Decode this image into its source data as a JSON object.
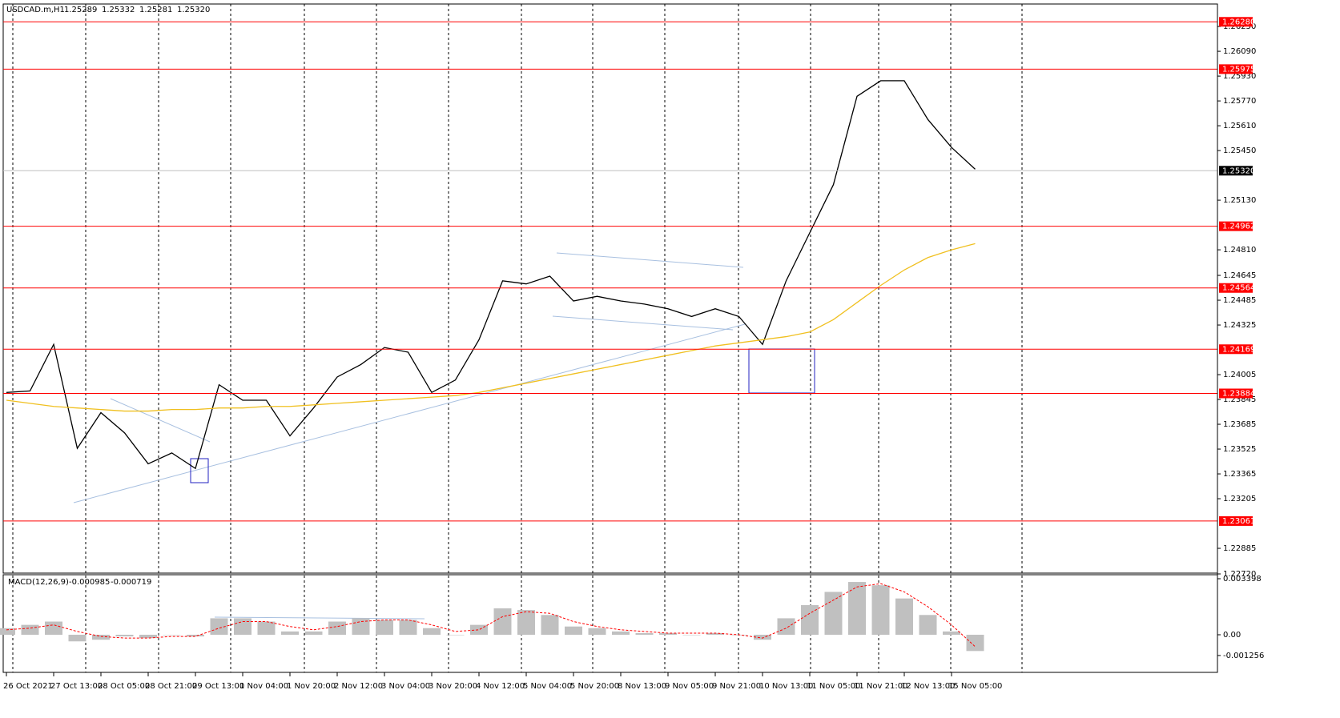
{
  "chart_data": [
    {
      "type": "line",
      "symbol": "USDCAD.m,H1",
      "ohlc": [
        1.25289,
        1.25332,
        1.25281,
        {
          "value": 1.2532,
          "label": "1.25320"
        }
      ],
      "categories": [
        "26 Oct 2021",
        null,
        "27 Oct 13:00",
        null,
        "28 Oct 05:00",
        null,
        "28 Oct 21:00",
        null,
        "29 Oct 13:00",
        null,
        "1 Nov 04:00",
        null,
        "1 Nov 20:00",
        null,
        "2 Nov 12:00",
        null,
        "3 Nov 04:00",
        null,
        "3 Nov 20:00",
        null,
        "4 Nov 12:00",
        null,
        "5 Nov 04:00",
        null,
        "5 Nov 20:00",
        null,
        "8 Nov 13:00",
        null,
        "9 Nov 05:00",
        null,
        "9 Nov 21:00",
        null,
        "10 Nov 13:00",
        null,
        "11 Nov 05:00",
        null,
        "11 Nov 21:00",
        null,
        "12 Nov 13:00",
        null,
        "15 Nov 05:00",
        null
      ],
      "series": [
        {
          "color": "#000000",
          "values": [
            1.2389,
            1.239,
            1.242,
            1.2353,
            1.2376,
            1.2363,
            1.2343,
            1.235,
            1.234,
            1.2394,
            1.2384,
            1.2384,
            1.2361,
            1.2379,
            1.2399,
            1.2407,
            1.2418,
            1.2415,
            1.2389,
            1.2397,
            1.2423,
            1.2461,
            1.2459,
            1.2464,
            1.2448,
            1.2451,
            1.2448,
            1.2446,
            1.2443,
            1.2438,
            1.2443,
            1.2438,
            1.242,
            1.2461,
            1.2492,
            1.2523,
            1.258,
            1.259,
            1.259,
            1.2565,
            1.2547,
            1.2533
          ]
        },
        {
          "color": "#f0c020",
          "values": [
            1.2384,
            1.2382,
            1.238,
            1.2379,
            1.2378,
            1.2377,
            1.2377,
            1.2378,
            1.2378,
            1.2379,
            1.2379,
            1.238,
            1.238,
            1.2381,
            1.2382,
            1.2383,
            1.2384,
            1.2385,
            1.2386,
            1.2387,
            1.2389,
            1.2392,
            1.2395,
            1.2398,
            1.2401,
            1.2404,
            1.2407,
            1.241,
            1.2413,
            1.2416,
            1.2419,
            1.2421,
            1.2423,
            1.2425,
            1.2428,
            1.2436,
            1.2447,
            1.2458,
            1.2468,
            1.2476,
            1.2481,
            1.2485
          ]
        }
      ],
      "ylim": [
        1.2272,
        1.26395
      ],
      "yticks": [
        {
          "value": 1.2625,
          "label": "1.26250"
        },
        {
          "value": 1.2609,
          "label": "1.26090"
        },
        {
          "value": 1.2593,
          "label": "1.25930"
        },
        {
          "value": 1.2577,
          "label": "1.25770"
        },
        {
          "value": 1.2561,
          "label": "1.25610"
        },
        {
          "value": 1.2545,
          "label": "1.25450"
        },
        {
          "value": 1.2513,
          "label": "1.25130"
        },
        {
          "value": 1.2481,
          "label": "1.24810"
        },
        1.24645,
        1.24485,
        1.24325,
        {
          "value": 1.24005,
          "label": "1.24005"
        },
        1.23845,
        1.23685,
        1.23525,
        1.23365,
        {
          "value": 1.23205,
          "label": "1.23205"
        },
        1.22885,
        {
          "value": 1.2272,
          "label": "1.22720"
        }
      ],
      "levels": [
        {
          "value": 1.2628,
          "label": "1.26280"
        },
        1.25975,
        1.24962,
        1.24564,
        1.24169,
        1.23884,
        1.23061
      ],
      "level_color": "#ff0000",
      "last": {
        "value": 1.2532,
        "label": "1.25320"
      }
    },
    {
      "type": "bar",
      "title": "MACD(12,26,9)",
      "series": [
        {
          "color": "#c0c0c0",
          "style": "bar",
          "values": [
            0.0004,
            0.0006,
            0.0008,
            -0.0004,
            -0.0003,
            -0.0001,
            -0.0002,
            0,
            -0.0001,
            0.001,
            0.001,
            0.0008,
            0.0002,
            0.0002,
            0.0008,
            0.001,
            0.0009,
            0.0009,
            0.0004,
            0,
            0.0006,
            0.0016,
            0.0015,
            0.0012,
            0.0005,
            0.0004,
            0.0002,
            0.0001,
            0.0001,
            0,
            0.0001,
            0,
            -0.0003,
            0.001,
            0.0018,
            0.0026,
            0.0032,
            0.003,
            0.0022,
            0.0012,
            0.0002,
            -0.000985
          ]
        },
        {
          "color": "#ff0000",
          "style": "dashed",
          "values": [
            0.0003,
            0.0004,
            0.0006,
            0.0002,
            -0.0001,
            -0.0002,
            -0.0002,
            -0.0001,
            -0.0001,
            0.0004,
            0.0008,
            0.0008,
            0.0005,
            0.0003,
            0.0005,
            0.0008,
            0.0009,
            0.0009,
            0.0006,
            0.0002,
            0.0003,
            0.0011,
            0.0014,
            0.0013,
            0.0008,
            0.0005,
            0.0003,
            0.0002,
            0.0001,
            0.0001,
            0.0001,
            0,
            -0.0002,
            0.0004,
            0.0013,
            0.0021,
            0.0029,
            0.0031,
            0.0026,
            0.0017,
            0.0006,
            -0.000719
          ]
        }
      ],
      "ylim": [
        -0.00228,
        0.00364
      ],
      "yticks": [
        0.003398,
        {
          "value": 0,
          "label": "0.00"
        },
        -0.001256
      ]
    }
  ]
}
